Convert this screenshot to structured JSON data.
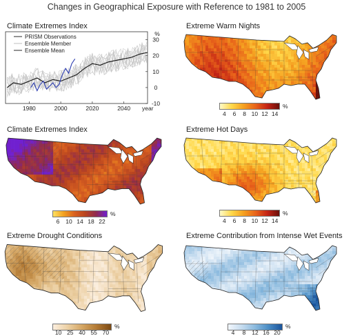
{
  "title": "Changes in Geographical Exposure with Reference to 1981 to 2005",
  "chart_data": [
    {
      "type": "line",
      "title": "Climate Extremes Index",
      "xlabel": "year",
      "ylabel": "%",
      "xticks": [
        "1980",
        "2000",
        "2020",
        "2040"
      ],
      "yticks": [
        "-10",
        "0",
        "10",
        "20",
        "30"
      ],
      "xlim": [
        1965,
        2055
      ],
      "ylim": [
        -10,
        35
      ],
      "legend": [
        "PRISM Observations",
        "Ensemble Member",
        "Ensemble Mean"
      ],
      "legend_position": "top-left",
      "series": [
        {
          "name": "PRISM Observations",
          "x": [
            1981,
            1983,
            1985,
            1987,
            1989,
            1991,
            1993,
            1995,
            1997,
            1999,
            2001,
            2003,
            2005,
            2007,
            2009
          ],
          "y": [
            0,
            3,
            -2,
            2,
            4,
            -1,
            1,
            3,
            0,
            2,
            8,
            12,
            9,
            15,
            18
          ],
          "color": "#2a3bb0"
        },
        {
          "name": "Ensemble Mean",
          "x": [
            1966,
            1970,
            1975,
            1980,
            1985,
            1990,
            1995,
            2000,
            2005,
            2010,
            2015,
            2020,
            2025,
            2030,
            2035,
            2040,
            2045,
            2050,
            2055
          ],
          "y": [
            0,
            3,
            2,
            4,
            6,
            3,
            5,
            4,
            6,
            8,
            12,
            15,
            14,
            16,
            17,
            18,
            19,
            21,
            22
          ],
          "color": "#111111"
        }
      ]
    }
  ],
  "panels": [
    {
      "title": "Extreme Warm Nights",
      "legend_ticks": [
        "4",
        "6",
        "8",
        "10",
        "12",
        "14"
      ],
      "unit": "%"
    },
    {
      "title": "Climate Extremes Index",
      "legend_ticks": [
        "6",
        "10",
        "14",
        "18",
        "22"
      ],
      "unit": "%"
    },
    {
      "title": "Extreme Hot Days",
      "legend_ticks": [
        "4",
        "6",
        "8",
        "10",
        "12",
        "14"
      ],
      "unit": "%"
    },
    {
      "title": "Extreme Drought Conditions",
      "legend_ticks": [
        "10",
        "25",
        "40",
        "55",
        "70"
      ],
      "unit": "%"
    },
    {
      "title": "Extreme Contribution from Intense Wet Events",
      "legend_ticks": [
        "4",
        "8",
        "12",
        "16",
        "20"
      ],
      "unit": "%"
    }
  ],
  "colors": {
    "warm": [
      "#fffac8",
      "#ffd84a",
      "#f5a020",
      "#e8641a",
      "#c42416",
      "#6a0f0a"
    ],
    "cei": [
      "#ffe060",
      "#f2a020",
      "#d86020",
      "#b84420",
      "#902a50",
      "#7020d0"
    ],
    "drought": [
      "#fbeede",
      "#ecd0a4",
      "#d4a664",
      "#b37a34",
      "#7c4a14"
    ],
    "wet": [
      "#f2f7fc",
      "#c6dcef",
      "#8bbade",
      "#4a8cc4",
      "#1a549c"
    ]
  }
}
